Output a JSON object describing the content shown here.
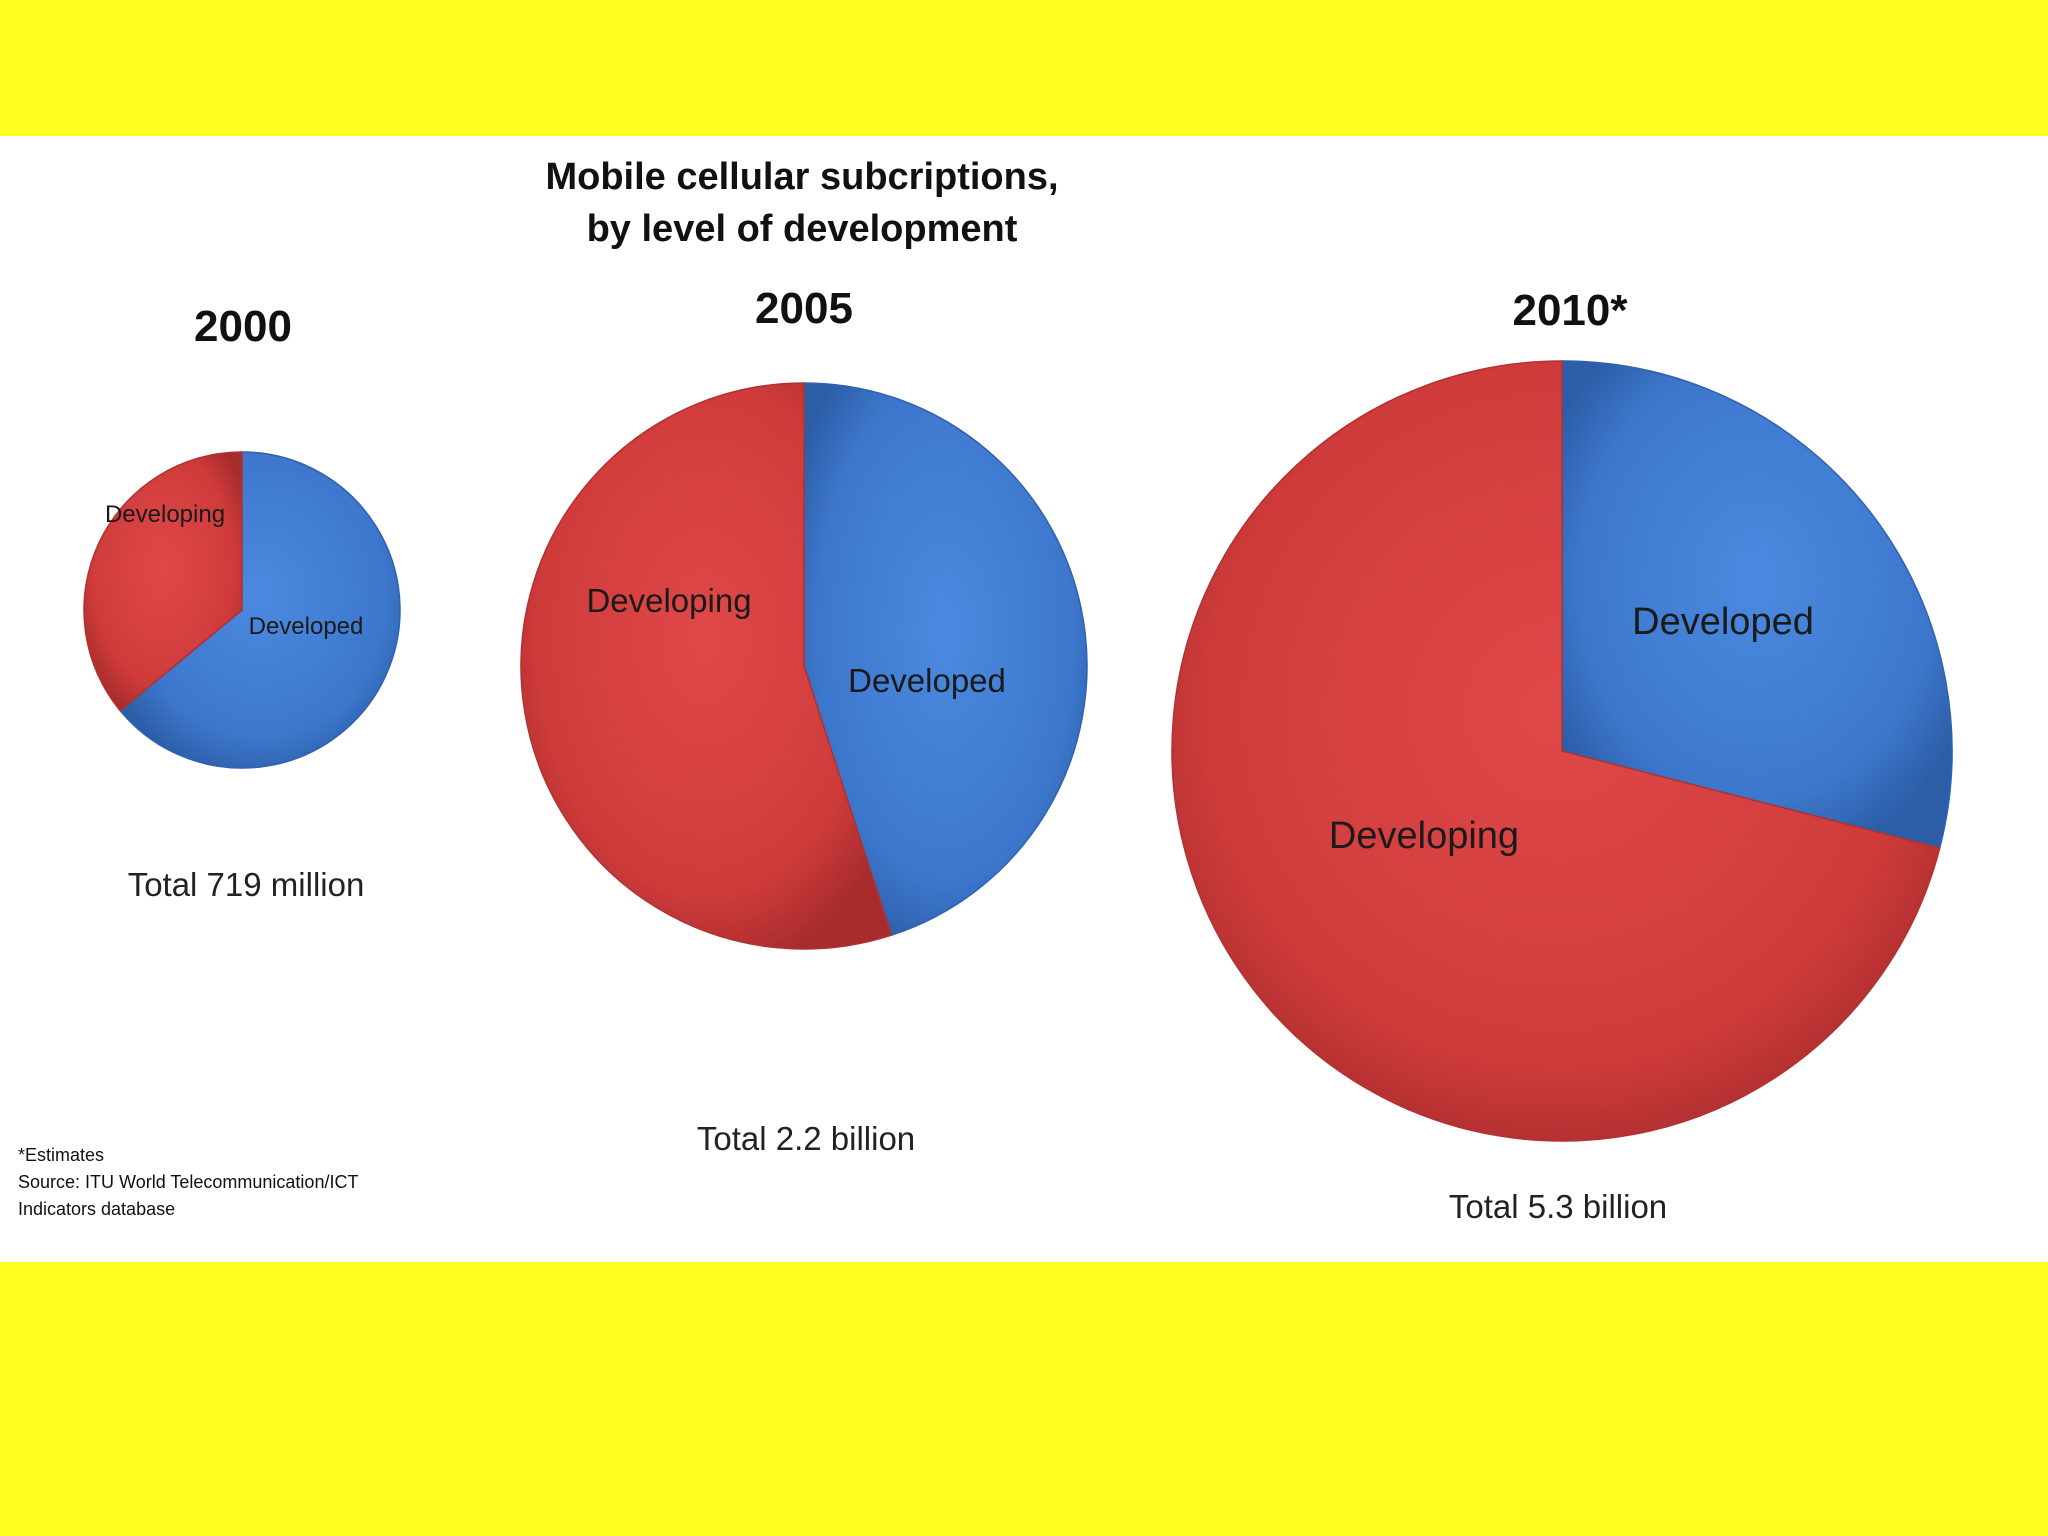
{
  "title": {
    "line1": "Mobile cellular subcriptions,",
    "line2": "by level of development"
  },
  "colors": {
    "background": "#ffff22",
    "developed": "#3e7ad0",
    "developing": "#d43d3d"
  },
  "chart_data": [
    {
      "type": "pie",
      "title": "2000",
      "total_label": "Total  719 million",
      "slices": [
        {
          "label": "Developed",
          "value": 64
        },
        {
          "label": "Developing",
          "value": 36
        }
      ]
    },
    {
      "type": "pie",
      "title": "2005",
      "total_label": "Total  2.2 billion",
      "slices": [
        {
          "label": "Developed",
          "value": 45
        },
        {
          "label": "Developing",
          "value": 55
        }
      ]
    },
    {
      "type": "pie",
      "title": "2010*",
      "total_label": "Total  5.3 billion",
      "slices": [
        {
          "label": "Developed",
          "value": 29
        },
        {
          "label": "Developing",
          "value": 71
        }
      ]
    }
  ],
  "footnote": {
    "line1": "*Estimates",
    "line2": "Source: ITU World Telecommunication/ICT",
    "line3": "Indicators database"
  }
}
